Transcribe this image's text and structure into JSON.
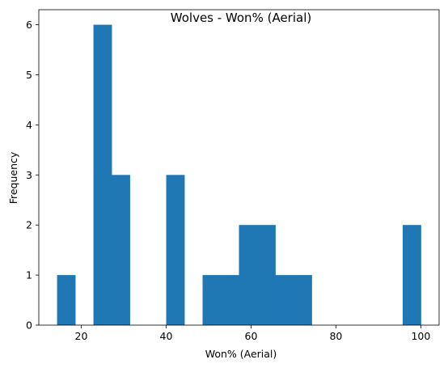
{
  "chart_data": {
    "type": "bar",
    "title": "Wolves - Won% (Aerial)",
    "xlabel": "Won% (Aerial)",
    "ylabel": "Frequency",
    "xlim": [
      10,
      104.3
    ],
    "ylim": [
      0,
      6.3
    ],
    "x_ticks": [
      20,
      40,
      60,
      80,
      100
    ],
    "y_ticks": [
      0,
      1,
      2,
      3,
      4,
      5,
      6
    ],
    "bin_edges": [
      14.3,
      18.585,
      22.87,
      27.155,
      31.44,
      35.725,
      40.01,
      44.295,
      48.58,
      52.865,
      57.15,
      61.435,
      65.72,
      70.005,
      74.29,
      78.575,
      82.86,
      87.145,
      91.43,
      95.715,
      100.0
    ],
    "values": [
      1,
      0,
      6,
      3,
      0,
      0,
      3,
      0,
      1,
      1,
      2,
      2,
      1,
      1,
      0,
      0,
      0,
      0,
      0,
      2
    ],
    "bar_color": "#1f77b4",
    "grid": false
  }
}
